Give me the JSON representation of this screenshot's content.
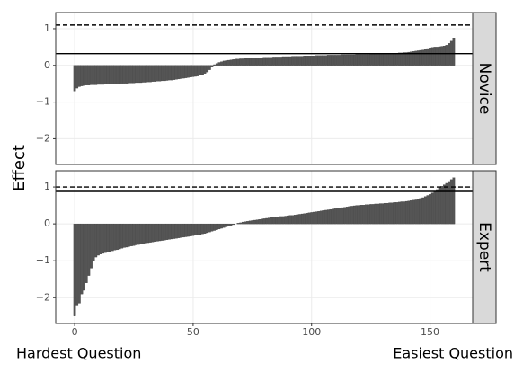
{
  "y_label": "Effect",
  "x_left_label": "Hardest Question",
  "x_right_label": "Easiest Question",
  "chart_data": [
    {
      "type": "bar",
      "strip": "Novice",
      "color": "#555555",
      "x": [
        0,
        1,
        2,
        3,
        4,
        5,
        6,
        7,
        8,
        9,
        10,
        11,
        12,
        13,
        14,
        15,
        16,
        17,
        18,
        19,
        20,
        21,
        22,
        23,
        24,
        25,
        26,
        27,
        28,
        29,
        30,
        31,
        32,
        33,
        34,
        35,
        36,
        37,
        38,
        39,
        40,
        41,
        42,
        43,
        44,
        45,
        46,
        47,
        48,
        49,
        50,
        51,
        52,
        53,
        54,
        55,
        56,
        57,
        58,
        59,
        60,
        61,
        62,
        63,
        64,
        65,
        66,
        67,
        68,
        69,
        70,
        71,
        72,
        73,
        74,
        75,
        76,
        77,
        78,
        79,
        80,
        81,
        82,
        83,
        84,
        85,
        86,
        87,
        88,
        89,
        90,
        91,
        92,
        93,
        94,
        95,
        96,
        97,
        98,
        99,
        100,
        101,
        102,
        103,
        104,
        105,
        106,
        107,
        108,
        109,
        110,
        111,
        112,
        113,
        114,
        115,
        116,
        117,
        118,
        119,
        120,
        121,
        122,
        123,
        124,
        125,
        126,
        127,
        128,
        129,
        130,
        131,
        132,
        133,
        134,
        135,
        136,
        137,
        138,
        139,
        140,
        141,
        142,
        143,
        144,
        145,
        146,
        147,
        148,
        149,
        150,
        151,
        152,
        153,
        154,
        155,
        156,
        157,
        158,
        159,
        160
      ],
      "values": [
        -0.7,
        -0.62,
        -0.58,
        -0.56,
        -0.55,
        -0.54,
        -0.54,
        -0.53,
        -0.53,
        -0.53,
        -0.52,
        -0.52,
        -0.52,
        -0.51,
        -0.51,
        -0.51,
        -0.5,
        -0.5,
        -0.5,
        -0.5,
        -0.49,
        -0.49,
        -0.49,
        -0.48,
        -0.48,
        -0.48,
        -0.47,
        -0.47,
        -0.47,
        -0.46,
        -0.46,
        -0.45,
        -0.45,
        -0.44,
        -0.44,
        -0.43,
        -0.43,
        -0.42,
        -0.42,
        -0.41,
        -0.4,
        -0.4,
        -0.39,
        -0.38,
        -0.37,
        -0.36,
        -0.35,
        -0.34,
        -0.33,
        -0.32,
        -0.31,
        -0.3,
        -0.29,
        -0.27,
        -0.25,
        -0.22,
        -0.18,
        -0.12,
        -0.05,
        0.02,
        0.05,
        0.08,
        0.1,
        0.12,
        0.13,
        0.14,
        0.15,
        0.16,
        0.17,
        0.17,
        0.18,
        0.18,
        0.19,
        0.19,
        0.2,
        0.2,
        0.2,
        0.21,
        0.21,
        0.21,
        0.22,
        0.22,
        0.22,
        0.22,
        0.23,
        0.23,
        0.23,
        0.23,
        0.24,
        0.24,
        0.24,
        0.24,
        0.25,
        0.25,
        0.25,
        0.25,
        0.25,
        0.26,
        0.26,
        0.26,
        0.26,
        0.26,
        0.27,
        0.27,
        0.27,
        0.27,
        0.27,
        0.28,
        0.28,
        0.28,
        0.28,
        0.28,
        0.28,
        0.29,
        0.29,
        0.29,
        0.29,
        0.29,
        0.29,
        0.3,
        0.3,
        0.3,
        0.3,
        0.3,
        0.3,
        0.31,
        0.31,
        0.31,
        0.31,
        0.31,
        0.32,
        0.32,
        0.32,
        0.32,
        0.33,
        0.33,
        0.33,
        0.34,
        0.34,
        0.35,
        0.35,
        0.36,
        0.37,
        0.38,
        0.39,
        0.4,
        0.41,
        0.42,
        0.44,
        0.46,
        0.48,
        0.49,
        0.5,
        0.5,
        0.51,
        0.52,
        0.53,
        0.55,
        0.6,
        0.66,
        0.75
      ],
      "reference_lines": [
        {
          "value": 1.1,
          "style": "dashed"
        },
        {
          "value": 0.32,
          "style": "solid"
        }
      ],
      "xlim": [
        -8,
        168
      ],
      "xticks": [
        0,
        50,
        100,
        150
      ],
      "ylim": [
        -2.7,
        1.44
      ],
      "yticks": [
        {
          "value": -2,
          "label": "−2"
        },
        {
          "value": -1,
          "label": "−1"
        },
        0,
        1
      ],
      "grid": true
    },
    {
      "type": "bar",
      "strip": "Expert",
      "color": "#555555",
      "x": [
        0,
        1,
        2,
        3,
        4,
        5,
        6,
        7,
        8,
        9,
        10,
        11,
        12,
        13,
        14,
        15,
        16,
        17,
        18,
        19,
        20,
        21,
        22,
        23,
        24,
        25,
        26,
        27,
        28,
        29,
        30,
        31,
        32,
        33,
        34,
        35,
        36,
        37,
        38,
        39,
        40,
        41,
        42,
        43,
        44,
        45,
        46,
        47,
        48,
        49,
        50,
        51,
        52,
        53,
        54,
        55,
        56,
        57,
        58,
        59,
        60,
        61,
        62,
        63,
        64,
        65,
        66,
        67,
        68,
        69,
        70,
        71,
        72,
        73,
        74,
        75,
        76,
        77,
        78,
        79,
        80,
        81,
        82,
        83,
        84,
        85,
        86,
        87,
        88,
        89,
        90,
        91,
        92,
        93,
        94,
        95,
        96,
        97,
        98,
        99,
        100,
        101,
        102,
        103,
        104,
        105,
        106,
        107,
        108,
        109,
        110,
        111,
        112,
        113,
        114,
        115,
        116,
        117,
        118,
        119,
        120,
        121,
        122,
        123,
        124,
        125,
        126,
        127,
        128,
        129,
        130,
        131,
        132,
        133,
        134,
        135,
        136,
        137,
        138,
        139,
        140,
        141,
        142,
        143,
        144,
        145,
        146,
        147,
        148,
        149,
        150,
        151,
        152,
        153,
        154,
        155,
        156,
        157,
        158,
        159,
        160
      ],
      "values": [
        -2.5,
        -2.2,
        -2.15,
        -1.9,
        -1.8,
        -1.6,
        -1.4,
        -1.2,
        -1.0,
        -0.9,
        -0.85,
        -0.82,
        -0.8,
        -0.78,
        -0.76,
        -0.75,
        -0.73,
        -0.71,
        -0.7,
        -0.68,
        -0.66,
        -0.64,
        -0.63,
        -0.61,
        -0.6,
        -0.59,
        -0.57,
        -0.56,
        -0.55,
        -0.53,
        -0.52,
        -0.51,
        -0.5,
        -0.49,
        -0.48,
        -0.47,
        -0.46,
        -0.45,
        -0.44,
        -0.43,
        -0.42,
        -0.41,
        -0.4,
        -0.39,
        -0.38,
        -0.37,
        -0.36,
        -0.35,
        -0.34,
        -0.33,
        -0.32,
        -0.31,
        -0.3,
        -0.29,
        -0.27,
        -0.26,
        -0.24,
        -0.22,
        -0.2,
        -0.18,
        -0.16,
        -0.14,
        -0.12,
        -0.1,
        -0.08,
        -0.06,
        -0.04,
        -0.02,
        0.0,
        0.02,
        0.03,
        0.05,
        0.06,
        0.07,
        0.08,
        0.09,
        0.1,
        0.11,
        0.12,
        0.13,
        0.14,
        0.15,
        0.16,
        0.17,
        0.17,
        0.18,
        0.19,
        0.2,
        0.2,
        0.21,
        0.22,
        0.23,
        0.23,
        0.24,
        0.25,
        0.26,
        0.27,
        0.28,
        0.29,
        0.3,
        0.31,
        0.32,
        0.33,
        0.34,
        0.35,
        0.36,
        0.37,
        0.38,
        0.39,
        0.4,
        0.41,
        0.42,
        0.43,
        0.44,
        0.45,
        0.46,
        0.47,
        0.48,
        0.49,
        0.5,
        0.5,
        0.51,
        0.51,
        0.52,
        0.52,
        0.53,
        0.53,
        0.54,
        0.54,
        0.55,
        0.55,
        0.56,
        0.56,
        0.57,
        0.57,
        0.58,
        0.58,
        0.59,
        0.6,
        0.6,
        0.61,
        0.62,
        0.63,
        0.64,
        0.65,
        0.67,
        0.69,
        0.71,
        0.74,
        0.77,
        0.8,
        0.84,
        0.88,
        0.93,
        0.98,
        1.02,
        1.06,
        1.1,
        1.15,
        1.2,
        1.25
      ],
      "reference_lines": [
        {
          "value": 1.0,
          "style": "dashed"
        },
        {
          "value": 0.88,
          "style": "solid"
        }
      ],
      "xlim": [
        -8,
        168
      ],
      "xticks": [
        0,
        50,
        100,
        150
      ],
      "ylim": [
        -2.7,
        1.44
      ],
      "yticks": [
        {
          "value": -2,
          "label": "−2"
        },
        {
          "value": -1,
          "label": "−1"
        },
        0,
        1
      ],
      "grid": true
    }
  ]
}
